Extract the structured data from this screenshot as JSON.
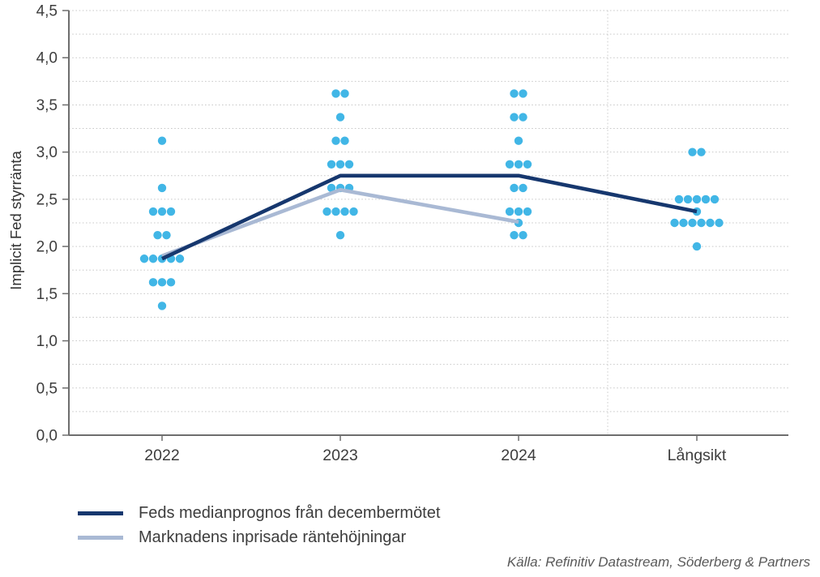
{
  "chart_data": {
    "type": "scatter",
    "title": "",
    "xlabel": "",
    "ylabel": "Implicit Fed styrränta",
    "categories": [
      "2022",
      "2023",
      "2024",
      "Långsikt"
    ],
    "ylim": [
      0,
      4.5
    ],
    "ytick_step": 0.5,
    "ytick_labels": [
      "0,0",
      "0,5",
      "1,0",
      "1,5",
      "2,0",
      "2,5",
      "3,0",
      "3,5",
      "4,0",
      "4,5"
    ],
    "minor_grid_step": 0.25,
    "grid": true,
    "separator_after_category": "2024",
    "dot_color": "#41b6e6",
    "dots": [
      {
        "category": "2022",
        "points": [
          [
            3.12,
            1
          ],
          [
            2.62,
            1
          ],
          [
            2.37,
            3
          ],
          [
            2.12,
            2
          ],
          [
            1.87,
            5
          ],
          [
            1.62,
            3
          ],
          [
            1.37,
            1
          ]
        ]
      },
      {
        "category": "2023",
        "points": [
          [
            3.62,
            2
          ],
          [
            3.37,
            1
          ],
          [
            3.12,
            2
          ],
          [
            2.87,
            3
          ],
          [
            2.62,
            3
          ],
          [
            2.37,
            4
          ],
          [
            2.12,
            1
          ]
        ]
      },
      {
        "category": "2024",
        "points": [
          [
            3.62,
            2
          ],
          [
            3.37,
            2
          ],
          [
            3.12,
            1
          ],
          [
            2.87,
            3
          ],
          [
            2.62,
            2
          ],
          [
            2.37,
            3
          ],
          [
            2.25,
            1
          ],
          [
            2.12,
            2
          ]
        ]
      },
      {
        "category": "Långsikt",
        "points": [
          [
            3.0,
            2
          ],
          [
            2.5,
            5
          ],
          [
            2.37,
            1
          ],
          [
            2.25,
            6
          ],
          [
            2.0,
            1
          ]
        ]
      }
    ],
    "series": [
      {
        "name": "Feds medianprognos från decembermötet",
        "color": "#16376e",
        "values": [
          1.87,
          2.75,
          2.75,
          2.37
        ]
      },
      {
        "name": "Marknadens inprisade räntehöjningar",
        "color": "#a9b9d4",
        "values": [
          1.9,
          2.6,
          2.26
        ]
      }
    ],
    "legend_position": "bottom-left"
  },
  "source": {
    "text": "Källa: Refinitiv Datastream, Söderberg & Partners"
  }
}
